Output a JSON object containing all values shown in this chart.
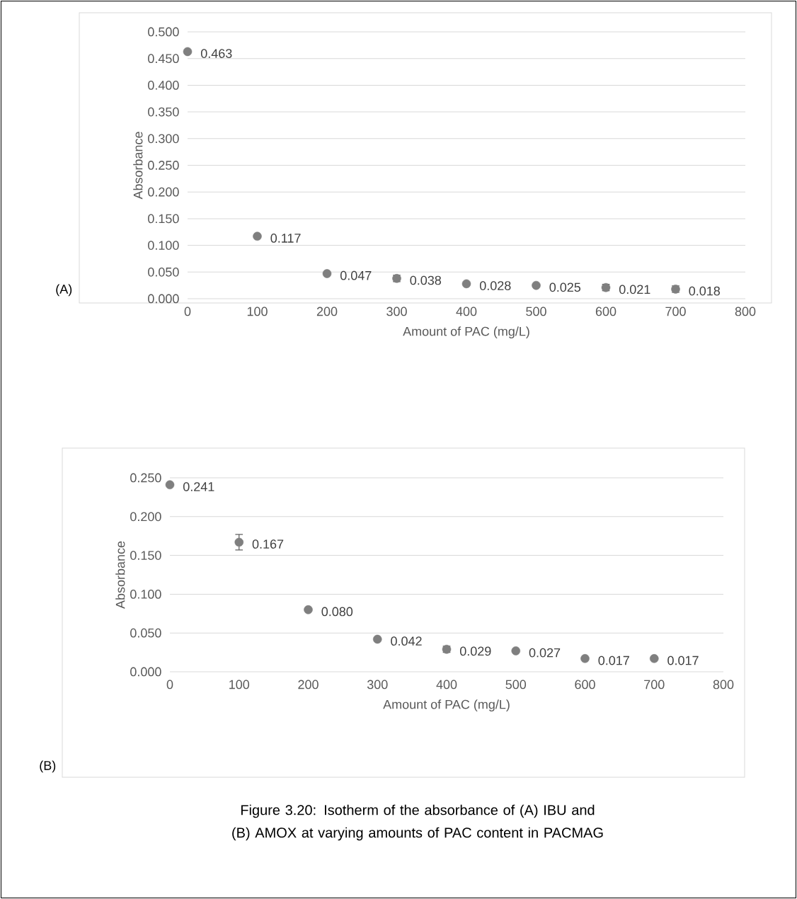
{
  "chart_data": [
    {
      "type": "scatter",
      "xlabel": "Amount of PAC (mg/L)",
      "ylabel": "Absorbance",
      "color": "#7f7f7f",
      "marker": "circle",
      "grid": "y",
      "x": [
        0,
        100,
        200,
        300,
        400,
        500,
        600,
        700
      ],
      "values": [
        0.463,
        0.117,
        0.047,
        0.038,
        0.028,
        0.025,
        0.021,
        0.018
      ],
      "errors": [
        null,
        null,
        null,
        0.006,
        null,
        null,
        0.006,
        0.006
      ],
      "value_labels": [
        "0.463",
        "0.117",
        "0.047",
        "0.038",
        "0.028",
        "0.025",
        "0.021",
        "0.018"
      ],
      "xlim": [
        0,
        800
      ],
      "xticks": [
        0,
        100,
        200,
        300,
        400,
        500,
        600,
        700,
        800
      ],
      "ylim": [
        0,
        0.5
      ],
      "yticks": [
        {
          "value": 0,
          "label": "0.000"
        },
        {
          "value": 0.05,
          "label": "0.050"
        },
        {
          "value": 0.1,
          "label": "0.100"
        },
        {
          "value": 0.15,
          "label": "0.150"
        },
        {
          "value": 0.2,
          "label": "0.200"
        },
        {
          "value": 0.25,
          "label": "0.250"
        },
        {
          "value": 0.3,
          "label": "0.300"
        },
        {
          "value": 0.35,
          "label": "0.350"
        },
        {
          "value": 0.4,
          "label": "0.400"
        },
        {
          "value": 0.45,
          "label": "0.450"
        },
        {
          "value": 0.5,
          "label": "0.500"
        }
      ],
      "annotations": [
        "(A)"
      ]
    },
    {
      "type": "scatter",
      "xlabel": "Amount of PAC (mg/L)",
      "ylabel": "Absorbance",
      "color": "#7f7f7f",
      "marker": "circle",
      "grid": "y",
      "x": [
        0,
        100,
        200,
        300,
        400,
        500,
        600,
        700
      ],
      "values": [
        0.241,
        0.167,
        0.08,
        0.042,
        0.029,
        0.027,
        0.017,
        0.017
      ],
      "errors": [
        null,
        0.01,
        null,
        null,
        0.004,
        null,
        null,
        null
      ],
      "value_labels": [
        "0.241",
        "0.167",
        "0.080",
        "0.042",
        "0.029",
        "0.027",
        "0.017",
        "0.017"
      ],
      "xlim": [
        0,
        800
      ],
      "xticks": [
        0,
        100,
        200,
        300,
        400,
        500,
        600,
        700,
        800
      ],
      "ylim": [
        0,
        0.25
      ],
      "yticks": [
        {
          "value": 0,
          "label": "0.000"
        },
        {
          "value": 0.05,
          "label": "0.050"
        },
        {
          "value": 0.1,
          "label": "0.100"
        },
        {
          "value": 0.15,
          "label": "0.150"
        },
        {
          "value": 0.2,
          "label": "0.200"
        },
        {
          "value": 0.25,
          "label": "0.250"
        }
      ],
      "annotations": [
        "(B)",
        "Figure 3.20: Isotherm of the absorbance of (A) IBU and (B) AMOX at varying amounts of PAC content in PACMAG"
      ]
    }
  ]
}
